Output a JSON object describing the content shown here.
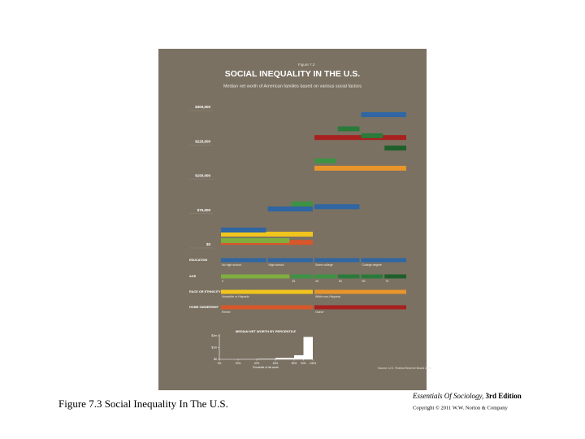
{
  "slide": {
    "caption": "Figure 7.3 Social Inequality In The U.S.",
    "book": "Essentials Of Sociology,",
    "edition": "3rd Edition",
    "copyright": "Copyright © 2011 W.W. Norton & Company"
  },
  "infographic": {
    "figure": "Figure 7.3",
    "title": "SOCIAL INEQUALITY IN THE U.S.",
    "subtitle": "Median net worth of American families based on various social factors",
    "ylim": [
      0,
      300000
    ],
    "yticks": [
      {
        "value": 0,
        "label": "$0"
      },
      {
        "value": 75000,
        "label": "$75,000"
      },
      {
        "value": 150000,
        "label": "$150,000"
      },
      {
        "value": 225000,
        "label": "$225,000"
      },
      {
        "value": 300000,
        "label": "$300,000"
      }
    ],
    "groups": [
      {
        "name": "EDUCATION",
        "categories": [
          "No high school",
          "High school",
          "Some college",
          "College degree"
        ],
        "colors": [
          "#2f66a3",
          "#2f66a3",
          "#2f66a3",
          "#2f66a3"
        ],
        "values": [
          32000,
          78000,
          83000,
          284000
        ]
      },
      {
        "name": "AGE",
        "categories": [
          "0",
          "35",
          "45",
          "55",
          "65",
          "75"
        ],
        "colors": [
          "#7fae3e",
          "#3e9245",
          "#3e9245",
          "#2a7a3a",
          "#2a7a3a",
          "#1f5f2c"
        ],
        "values": [
          9000,
          89000,
          183000,
          253000,
          238000,
          211000
        ]
      },
      {
        "name": "RACE OR ETHNICITY",
        "categories": [
          "Nonwhite or Hispanic",
          "White non-Hispanic"
        ],
        "colors": [
          "#f2c51c",
          "#e8952b"
        ],
        "values": [
          23000,
          167000
        ]
      },
      {
        "name": "HOME OWNERSHIP",
        "categories": [
          "Renter",
          "Owner"
        ],
        "colors": [
          "#d9562b",
          "#a8201f"
        ],
        "values": [
          5000,
          234000
        ]
      }
    ],
    "inset": {
      "title": "MEDIAN NET WORTH BY PERCENTILE",
      "xlabel": "Percentile of net worth",
      "bins": [
        0,
        20,
        40,
        60,
        80,
        90,
        100
      ],
      "values": [
        0,
        10000,
        40000,
        120000,
        350000,
        1900000
      ],
      "xticks": [
        {
          "value": 0,
          "label": "0%"
        },
        {
          "value": 20,
          "label": "20%"
        },
        {
          "value": 40,
          "label": "40%"
        },
        {
          "value": 60,
          "label": "60%"
        },
        {
          "value": 80,
          "label": "80%"
        },
        {
          "value": 90,
          "label": "90%"
        },
        {
          "value": 100,
          "label": "100%"
        }
      ],
      "ylim": [
        0,
        2000000
      ],
      "yticks": [
        {
          "value": 0,
          "label": "$0"
        },
        {
          "value": 1000000,
          "label": "$1m"
        },
        {
          "value": 2000000,
          "label": "$2m"
        }
      ]
    },
    "source": "Source: U.S. Federal Reserve Board 2008"
  }
}
